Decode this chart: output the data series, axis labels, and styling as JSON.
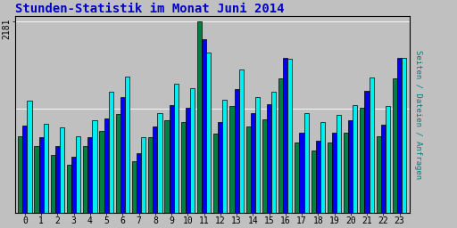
{
  "title": "Stunden-Statistik im Monat Juni 2014",
  "title_color": "#0000cc",
  "ylabel": "Seiten / Dateien / Anfragen",
  "ylabel_color": "#008080",
  "hours": [
    0,
    1,
    2,
    3,
    4,
    5,
    6,
    7,
    8,
    9,
    10,
    11,
    12,
    13,
    14,
    15,
    16,
    17,
    18,
    19,
    20,
    21,
    22,
    23
  ],
  "seiten": [
    870,
    760,
    660,
    550,
    760,
    940,
    1130,
    590,
    860,
    1060,
    1040,
    2181,
    900,
    1220,
    990,
    1070,
    1530,
    800,
    710,
    800,
    920,
    1200,
    870,
    1530
  ],
  "dateien": [
    1000,
    860,
    760,
    640,
    860,
    1080,
    1320,
    680,
    990,
    1230,
    1200,
    1980,
    1040,
    1410,
    1140,
    1240,
    1770,
    920,
    820,
    920,
    1060,
    1390,
    1010,
    1770
  ],
  "anfragen": [
    1280,
    1020,
    980,
    870,
    1060,
    1380,
    1550,
    860,
    1140,
    1470,
    1420,
    1830,
    1290,
    1640,
    1320,
    1380,
    1760,
    1140,
    1040,
    1120,
    1230,
    1540,
    1220,
    1770
  ],
  "color_seiten": "#008040",
  "color_dateien": "#0000ee",
  "color_anfragen": "#00eeee",
  "ymax": 2181,
  "ytick_label": "2181",
  "yhline1": 2181,
  "yhline2": 1190,
  "background_color": "#c0c0c0",
  "plot_bg": "#c0c0c0",
  "bar_width": 0.28,
  "fontsize_title": 10,
  "fontsize_axis": 7,
  "fontsize_ylabel": 6.5
}
